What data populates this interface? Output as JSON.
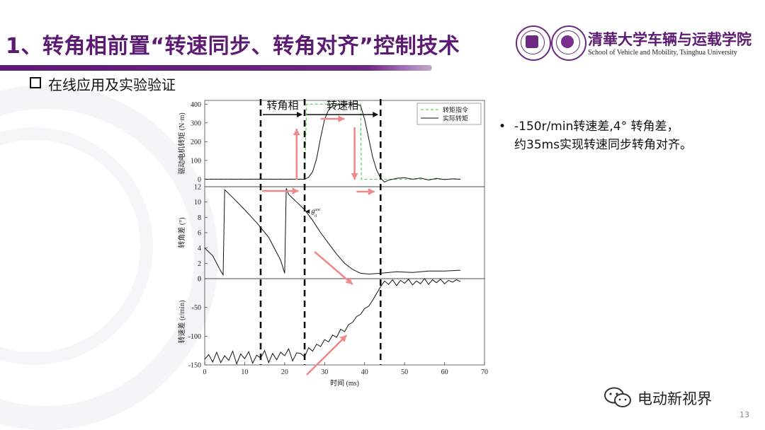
{
  "slide": {
    "title": "1、转角相前置“转速同步、转角对齐”控制技术",
    "subheading": "在线应用及实验验证",
    "page_number": "13",
    "accent_color": "#5c1a72"
  },
  "school": {
    "name_cn": "清華大学车辆与运载学院",
    "name_en": "School of Vehicle and Mobility, Tsinghua University"
  },
  "note": {
    "bullet": "•",
    "line1": "-150r/min转速差,4° 转角差，",
    "line2": "约35ms实现转速同步转角对齐。"
  },
  "watermark": {
    "text": "电动新视界"
  },
  "chart_data": {
    "type": "line",
    "xlabel": "时间 (ms)",
    "x_ticks": [
      "0",
      "10",
      "20",
      "30",
      "40",
      "50",
      "60",
      "70"
    ],
    "xlim": [
      0,
      70
    ],
    "phase_labels": [
      "转角相",
      "转速相"
    ],
    "phase_boundaries_ms": [
      14,
      25,
      44
    ],
    "theta_label": "θ",
    "theta_sub": "0",
    "theta_sup": "unc",
    "panels": [
      {
        "name": "torque",
        "ylabel": "驱动电机转矩 (N·m)",
        "ylim": [
          -40,
          420
        ],
        "y_ticks": [
          "0",
          "100",
          "200",
          "300",
          "400"
        ],
        "legend": [
          "转矩指令",
          "实际转矩"
        ],
        "series": [
          {
            "name": "转矩指令",
            "color": "#33cc33",
            "dashed": true,
            "x": [
              0,
              25,
              25.5,
              39,
              39.2,
              44,
              50,
              64
            ],
            "y": [
              0,
              0,
              400,
              400,
              0,
              0,
              0,
              0
            ]
          },
          {
            "name": "实际转矩",
            "color": "#111111",
            "dashed": false,
            "x": [
              0,
              25,
              26,
              27,
              28,
              29,
              30,
              31,
              32,
              33,
              34,
              35,
              38,
              39,
              40,
              41,
              42,
              43,
              44,
              45,
              46,
              48,
              50,
              52,
              54,
              56,
              58,
              60,
              62,
              64
            ],
            "y": [
              0,
              0,
              10,
              40,
              110,
              220,
              320,
              370,
              390,
              395,
              398,
              400,
              400,
              392,
              320,
              220,
              120,
              50,
              5,
              -15,
              -5,
              5,
              8,
              0,
              6,
              -4,
              4,
              -2,
              2,
              0
            ]
          }
        ]
      },
      {
        "name": "angle",
        "ylabel": "转角差 (°)",
        "ylim": [
          0,
          12
        ],
        "y_ticks": [
          "0",
          "2",
          "4",
          "6",
          "8",
          "10",
          "12"
        ],
        "series": [
          {
            "name": "转角差",
            "color": "#111111",
            "x": [
              0,
              2,
              4,
              4.6,
              5,
              7,
              10,
              13,
              16,
              19,
              20,
              20.4,
              21,
              23,
              25,
              27,
              29,
              31,
              33,
              35,
              37,
              39,
              41,
              44,
              48,
              52,
              56,
              60,
              64
            ],
            "y": [
              4,
              3,
              1,
              0.5,
              11.6,
              10.6,
              9,
              7.3,
              5.4,
              2.4,
              0.7,
              11.8,
              11,
              10,
              9,
              7.6,
              6,
              4.6,
              3.2,
              2,
              1.2,
              0.7,
              0.6,
              0.7,
              0.9,
              0.8,
              1,
              1,
              1.1
            ]
          }
        ]
      },
      {
        "name": "speed",
        "ylabel": "转速差 (r/min)",
        "ylim": [
          -150,
          0
        ],
        "y_ticks": [
          "0",
          "-50",
          "-100",
          "-150"
        ],
        "series": [
          {
            "name": "转速差",
            "color": "#111111",
            "x": [
              0,
              1,
              2,
              3,
              4,
              5,
              6,
              7,
              8,
              9,
              10,
              11,
              12,
              13,
              14,
              15,
              16,
              17,
              18,
              19,
              20,
              21,
              22,
              23,
              24,
              25,
              26,
              27,
              28,
              29,
              30,
              31,
              32,
              33,
              34,
              35,
              36,
              37,
              38,
              39,
              40,
              41,
              42,
              43,
              44,
              45,
              46,
              47,
              48,
              49,
              50,
              51,
              52,
              53,
              54,
              55,
              56,
              57,
              58,
              59,
              60,
              61,
              62,
              63,
              64
            ],
            "y": [
              -140,
              -132,
              -145,
              -128,
              -146,
              -134,
              -142,
              -126,
              -148,
              -131,
              -139,
              -127,
              -147,
              -133,
              -138,
              -125,
              -146,
              -130,
              -141,
              -128,
              -134,
              -122,
              -143,
              -129,
              -130,
              -136,
              -120,
              -126,
              -114,
              -118,
              -106,
              -110,
              -98,
              -102,
              -88,
              -92,
              -80,
              -76,
              -66,
              -62,
              -52,
              -48,
              -38,
              -26,
              -14,
              -4,
              -10,
              -2,
              -12,
              -3,
              -8,
              -1,
              -11,
              -4,
              -9,
              0,
              -10,
              -2,
              -7,
              -1,
              -9,
              -3,
              -6,
              -2,
              -5
            ]
          }
        ]
      }
    ]
  }
}
